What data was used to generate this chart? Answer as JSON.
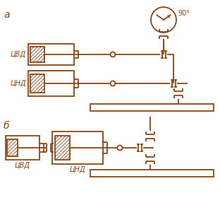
{
  "color": "#8B4513",
  "bg": "#FFFFFF",
  "lw": 1.3,
  "label_a": "а",
  "label_b": "б",
  "label_cvd_a": "ЦВД",
  "label_cnd_a": "ЦНД",
  "label_cvd_b": "ЦВД",
  "label_cnd_b": "ЦНД",
  "label_90": "90°"
}
